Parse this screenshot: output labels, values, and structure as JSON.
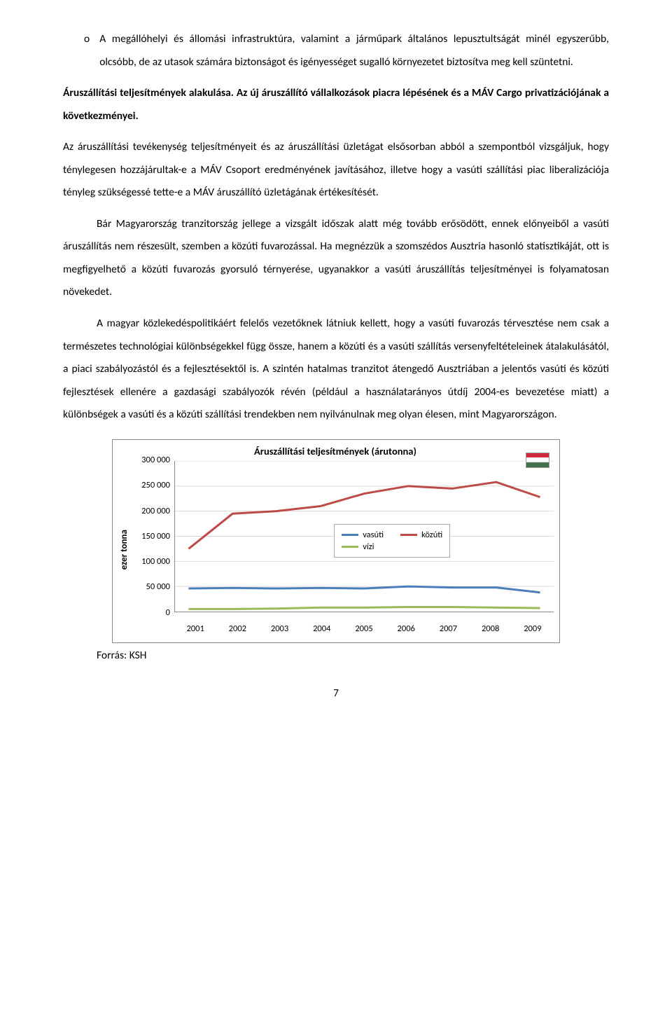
{
  "bullet": {
    "marker": "o",
    "text": "A megállóhelyi és állomási infrastruktúra, valamint a járműpark általános lepusztultságát minél egyszerűbb, olcsóbb, de az utasok számára biztonságot és igényességet sugalló környezetet biztosítva meg kell szüntetni."
  },
  "heading": "Áruszállítási teljesítmények alakulása. Az új áruszállító vállalkozások piacra lépésének és a MÁV Cargo privatizációjának a következményei.",
  "paragraphs": {
    "p1": "Az áruszállítási tevékenység teljesítményeit és az áruszállítási üzletágat elsősorban abból a szempontból vizsgáljuk, hogy ténylegesen hozzájárultak-e a MÁV Csoport eredményének javításához, illetve hogy a vasúti szállítási piac liberalizációja tényleg szükségessé tette-e a MÁV áruszállító üzletágának értékesítését.",
    "p2": "Bár Magyarország tranzitország jellege a vizsgált időszak alatt még tovább erősödött, ennek előnyeiből a vasúti áruszállítás nem részesült, szemben a közúti fuvarozással. Ha megnézzük a szomszédos Ausztria hasonló statisztikáját, ott is megfigyelhető a közúti fuvarozás gyorsuló térnyerése, ugyanakkor a vasúti áruszállítás teljesítményei is folyamatosan növekedet.",
    "p3": "A magyar közlekedéspolitikáért felelős vezetőknek látniuk kellett, hogy a vasúti fuvarozás térvesztése nem csak a természetes technológiai különbségekkel függ össze, hanem a közúti és a vasúti szállítás versenyfeltételeinek átalakulásától, a piaci szabályozástól és a fejlesztésektől is. A szintén hatalmas tranzitot átengedő Ausztriában a jelentős vasúti és közúti fejlesztések ellenére a gazdasági szabályozók révén (például a használatarányos útdíj 2004-es bevezetése miatt) a különbségek a vasúti és a közúti szállítási trendekben nem nyilvánulnak meg olyan élesen, mint Magyarországon."
  },
  "chart": {
    "type": "line",
    "title": "Áruszállítási teljesítmények (árutonna)",
    "ylabel": "ezer tonna",
    "ylim": [
      0,
      300000
    ],
    "ytick_step": 50000,
    "yticks_labels": [
      "300 000",
      "250 000",
      "200 000",
      "150 000",
      "100 000",
      "50 000",
      "0"
    ],
    "xlabels": [
      "2001",
      "2002",
      "2003",
      "2004",
      "2005",
      "2006",
      "2007",
      "2008",
      "2009"
    ],
    "grid_color": "#d9d9d9",
    "background_color": "#ffffff",
    "border_color": "#888888",
    "line_width": 3,
    "series": {
      "vasuti": {
        "label": "vasúti",
        "color": "#4a7ebb",
        "values": [
          46000,
          47000,
          46000,
          47000,
          46000,
          50000,
          48000,
          48000,
          38000
        ]
      },
      "kozuti": {
        "label": "közúti",
        "color": "#be4b48",
        "values": [
          125000,
          195000,
          200000,
          210000,
          235000,
          250000,
          245000,
          258000,
          228000
        ]
      },
      "vizi": {
        "label": "vízi",
        "color": "#9bbb59",
        "values": [
          5000,
          5000,
          6000,
          8000,
          8000,
          9000,
          9000,
          8000,
          7000
        ]
      }
    },
    "flag_colors": [
      "#cd2a3e",
      "#ffffff",
      "#436f4d"
    ]
  },
  "source": "Forrás: KSH",
  "page_number": "7"
}
